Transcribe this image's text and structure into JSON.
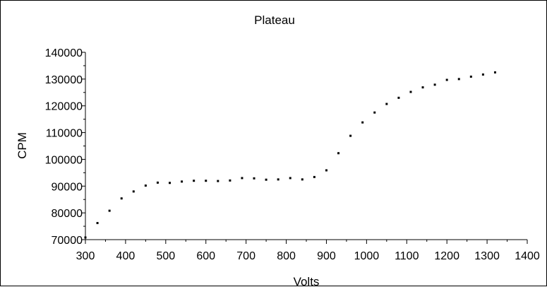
{
  "chart_data": {
    "type": "scatter",
    "title": "Plateau",
    "xlabel": "Volts",
    "ylabel": "CPM",
    "xlim": [
      300,
      1400
    ],
    "ylim": [
      70000,
      140000
    ],
    "x_ticks": [
      300,
      400,
      500,
      600,
      700,
      800,
      900,
      1000,
      1100,
      1200,
      1300,
      1400
    ],
    "y_ticks": [
      70000,
      80000,
      90000,
      100000,
      110000,
      120000,
      130000,
      140000
    ],
    "grid": false,
    "legend": "none",
    "point_color": "#000000",
    "series": [
      {
        "x": [
          300,
          330,
          360,
          390,
          420,
          450,
          480,
          510,
          540,
          570,
          600,
          630,
          660,
          690,
          720,
          750,
          780,
          810,
          840,
          870,
          900,
          930,
          960,
          990,
          1020,
          1050,
          1080,
          1110,
          1140,
          1170,
          1200,
          1230,
          1260,
          1290,
          1320
        ],
        "y": [
          70800,
          76200,
          80800,
          85400,
          88000,
          90200,
          91300,
          91200,
          91700,
          92000,
          92000,
          91900,
          92100,
          93000,
          92900,
          92400,
          92500,
          93000,
          92500,
          93400,
          95900,
          102300,
          108800,
          113800,
          117500,
          120700,
          123000,
          125200,
          126900,
          127900,
          129700,
          130000,
          130900,
          131700,
          132500
        ]
      }
    ]
  }
}
